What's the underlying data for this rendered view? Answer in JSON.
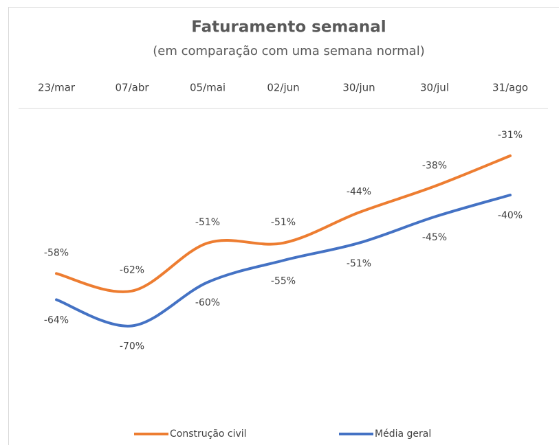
{
  "chart_data": {
    "type": "line",
    "title": "Faturamento semanal",
    "subtitle": "(em comparação com uma semana normal)",
    "categories": [
      "23/mar",
      "07/abr",
      "05/mai",
      "02/jun",
      "30/jun",
      "30/jul",
      "31/ago"
    ],
    "series": [
      {
        "name": "Construção civil",
        "color": "#ED7D31",
        "label_side": "above",
        "values": [
          -58,
          -62,
          -51,
          -51,
          -44,
          -38,
          -31
        ],
        "value_labels": [
          "-58%",
          "-62%",
          "-51%",
          "-51%",
          "-44%",
          "-38%",
          "-31%"
        ]
      },
      {
        "name": "Média geral",
        "color": "#4472C4",
        "label_side": "below",
        "values": [
          -64,
          -70,
          -60,
          -55,
          -51,
          -45,
          -40
        ],
        "value_labels": [
          "-64%",
          "-70%",
          "-60%",
          "-55%",
          "-51%",
          "-45%",
          "-40%"
        ]
      }
    ],
    "ylim": [
      -80,
      -20
    ],
    "smooth": true,
    "legend": "bottom"
  }
}
